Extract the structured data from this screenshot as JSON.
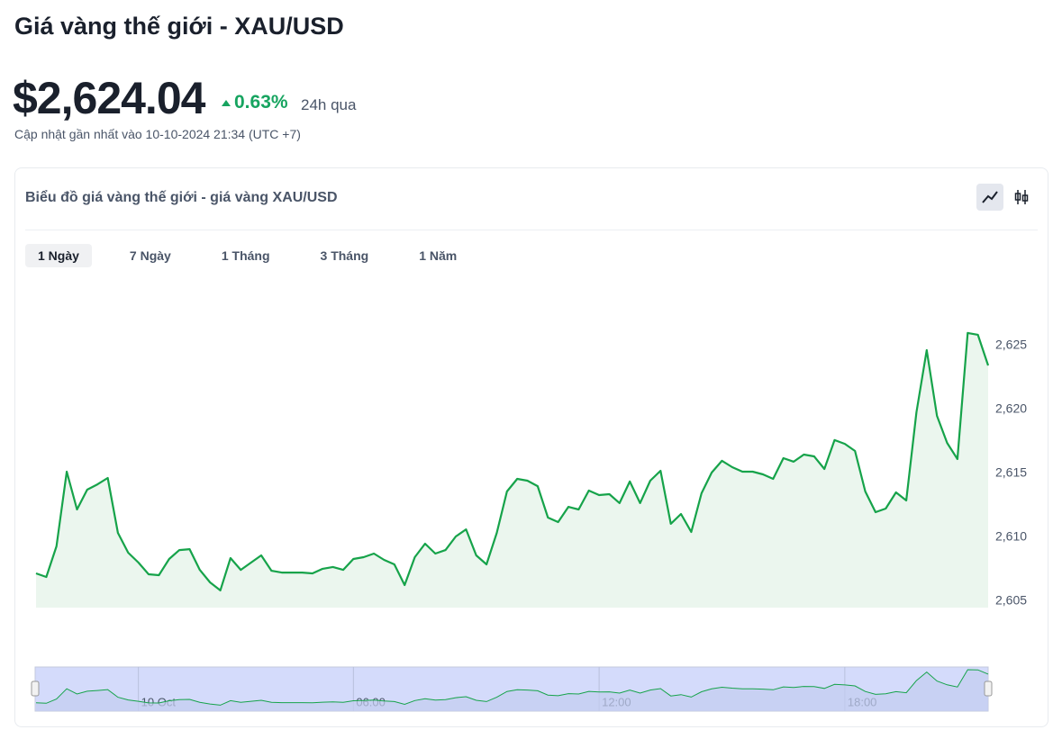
{
  "header": {
    "title": "Giá vàng thế giới - XAU/USD",
    "price": "$2,624.04",
    "change": "0.63%",
    "change_period": "24h qua",
    "updated": "Cập nhật gần nhất vào 10-10-2024 21:34 (UTC +7)"
  },
  "card": {
    "title": "Biểu đồ giá vàng thế giới - giá vàng XAU/USD",
    "ranges": [
      "1 Ngày",
      "7 Ngày",
      "1 Tháng",
      "3 Tháng",
      "1 Năm"
    ],
    "active_range": 0
  },
  "chart_data": {
    "type": "area",
    "color": "#16a34a",
    "categories": [
      null,
      null,
      null,
      null,
      null,
      null,
      null,
      null,
      null,
      null,
      "10 Oct",
      null,
      null,
      null,
      null,
      null,
      null,
      null,
      null,
      null,
      null,
      null,
      null,
      null,
      null,
      null,
      null,
      null,
      null,
      null,
      null,
      "06:00",
      null,
      null,
      null,
      null,
      null,
      null,
      null,
      null,
      null,
      null,
      null,
      null,
      null,
      null,
      null,
      null,
      null,
      null,
      null,
      null,
      null,
      null,
      null,
      "12:00",
      null,
      null,
      null,
      null,
      null,
      null,
      null,
      null,
      null,
      null,
      null,
      null,
      null,
      null,
      null,
      null,
      null,
      null,
      null,
      null,
      null,
      null,
      null,
      "18:00",
      null,
      null,
      null,
      null,
      null,
      null,
      null,
      null,
      null,
      null,
      null,
      null,
      null,
      null
    ],
    "values": [
      2607.18,
      2606.9,
      2609.3,
      2615.14,
      2612.18,
      2613.73,
      2614.15,
      2614.65,
      2610.35,
      2608.8,
      2608.03,
      2607.11,
      2607.04,
      2608.31,
      2609.01,
      2609.08,
      2607.46,
      2606.48,
      2605.85,
      2608.38,
      2607.46,
      2608.03,
      2608.59,
      2607.39,
      2607.25,
      2607.25,
      2607.25,
      2607.18,
      2607.54,
      2607.68,
      2607.46,
      2608.31,
      2608.45,
      2608.73,
      2608.24,
      2607.89,
      2606.27,
      2608.45,
      2609.51,
      2608.73,
      2609.01,
      2610.07,
      2610.63,
      2608.59,
      2607.89,
      2610.35,
      2613.59,
      2614.58,
      2614.44,
      2614.01,
      2611.55,
      2611.2,
      2612.39,
      2612.18,
      2613.66,
      2613.31,
      2613.38,
      2612.68,
      2614.37,
      2612.68,
      2614.44,
      2615.21,
      2611.06,
      2611.83,
      2610.42,
      2613.45,
      2615.07,
      2615.99,
      2615.49,
      2615.14,
      2615.14,
      2614.93,
      2614.58,
      2616.2,
      2615.92,
      2616.48,
      2616.34,
      2615.35,
      2617.61,
      2617.32,
      2616.76,
      2613.59,
      2611.97,
      2612.25,
      2613.52,
      2612.89,
      2619.79,
      2624.65,
      2619.51,
      2617.39,
      2616.13,
      2625.99,
      2625.85,
      2623.45
    ],
    "ylim": [
      2604.5,
      2627.5
    ],
    "yticks": [
      {
        "value": 2605,
        "label": "2,605"
      },
      {
        "value": 2610,
        "label": "2,610"
      },
      {
        "value": 2615,
        "label": "2,615"
      },
      {
        "value": 2620,
        "label": "2,620"
      },
      {
        "value": 2625,
        "label": "2,625"
      }
    ]
  }
}
